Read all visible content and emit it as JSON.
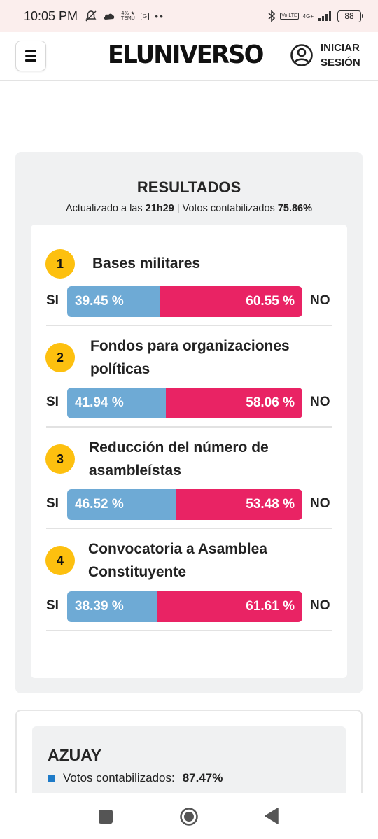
{
  "status_bar": {
    "time": "10:05 PM",
    "temu_label": "TEMU",
    "temu_top": "4% ★",
    "g_label": "G",
    "dots": "••",
    "volte": "Vo LTE",
    "network": "4G+",
    "battery": "88"
  },
  "header": {
    "logo": "ELUNIVERSO",
    "login_line1": "INICIAR",
    "login_line2": "SESIÓN"
  },
  "results": {
    "title": "RESULTADOS",
    "updated_prefix": "Actualizado a las ",
    "updated_time": "21h29",
    "separator": " | ",
    "counted_prefix": "Votos contabilizados ",
    "counted_value": "75.86%",
    "si_label": "SI",
    "no_label": "NO",
    "questions": [
      {
        "number": "1",
        "title": "Bases militares",
        "si_pct": 39.45,
        "no_pct": 60.55,
        "si_text": "39.45 %",
        "no_text": "60.55 %"
      },
      {
        "number": "2",
        "title": "Fondos para organizaciones políticas",
        "si_pct": 41.94,
        "no_pct": 58.06,
        "si_text": "41.94 %",
        "no_text": "58.06 %"
      },
      {
        "number": "3",
        "title": "Reducción del número de asambleístas",
        "si_pct": 46.52,
        "no_pct": 53.48,
        "si_text": "46.52 %",
        "no_text": "53.48 %"
      },
      {
        "number": "4",
        "title": "Convocatoria a Asamblea Constituyente",
        "si_pct": 38.39,
        "no_pct": 61.61,
        "si_text": "38.39 %",
        "no_text": "61.61 %"
      }
    ]
  },
  "province": {
    "name": "AZUAY",
    "label": "Votos contabilizados:",
    "value": "87.47%"
  },
  "colors": {
    "si": "#6eaad5",
    "no": "#e92364",
    "badge": "#fdc00f"
  },
  "icons": {
    "menu": "hamburger-icon",
    "user": "user-circle-icon",
    "nav_recents": "square-icon",
    "nav_home": "circle-icon",
    "nav_back": "triangle-back-icon"
  }
}
